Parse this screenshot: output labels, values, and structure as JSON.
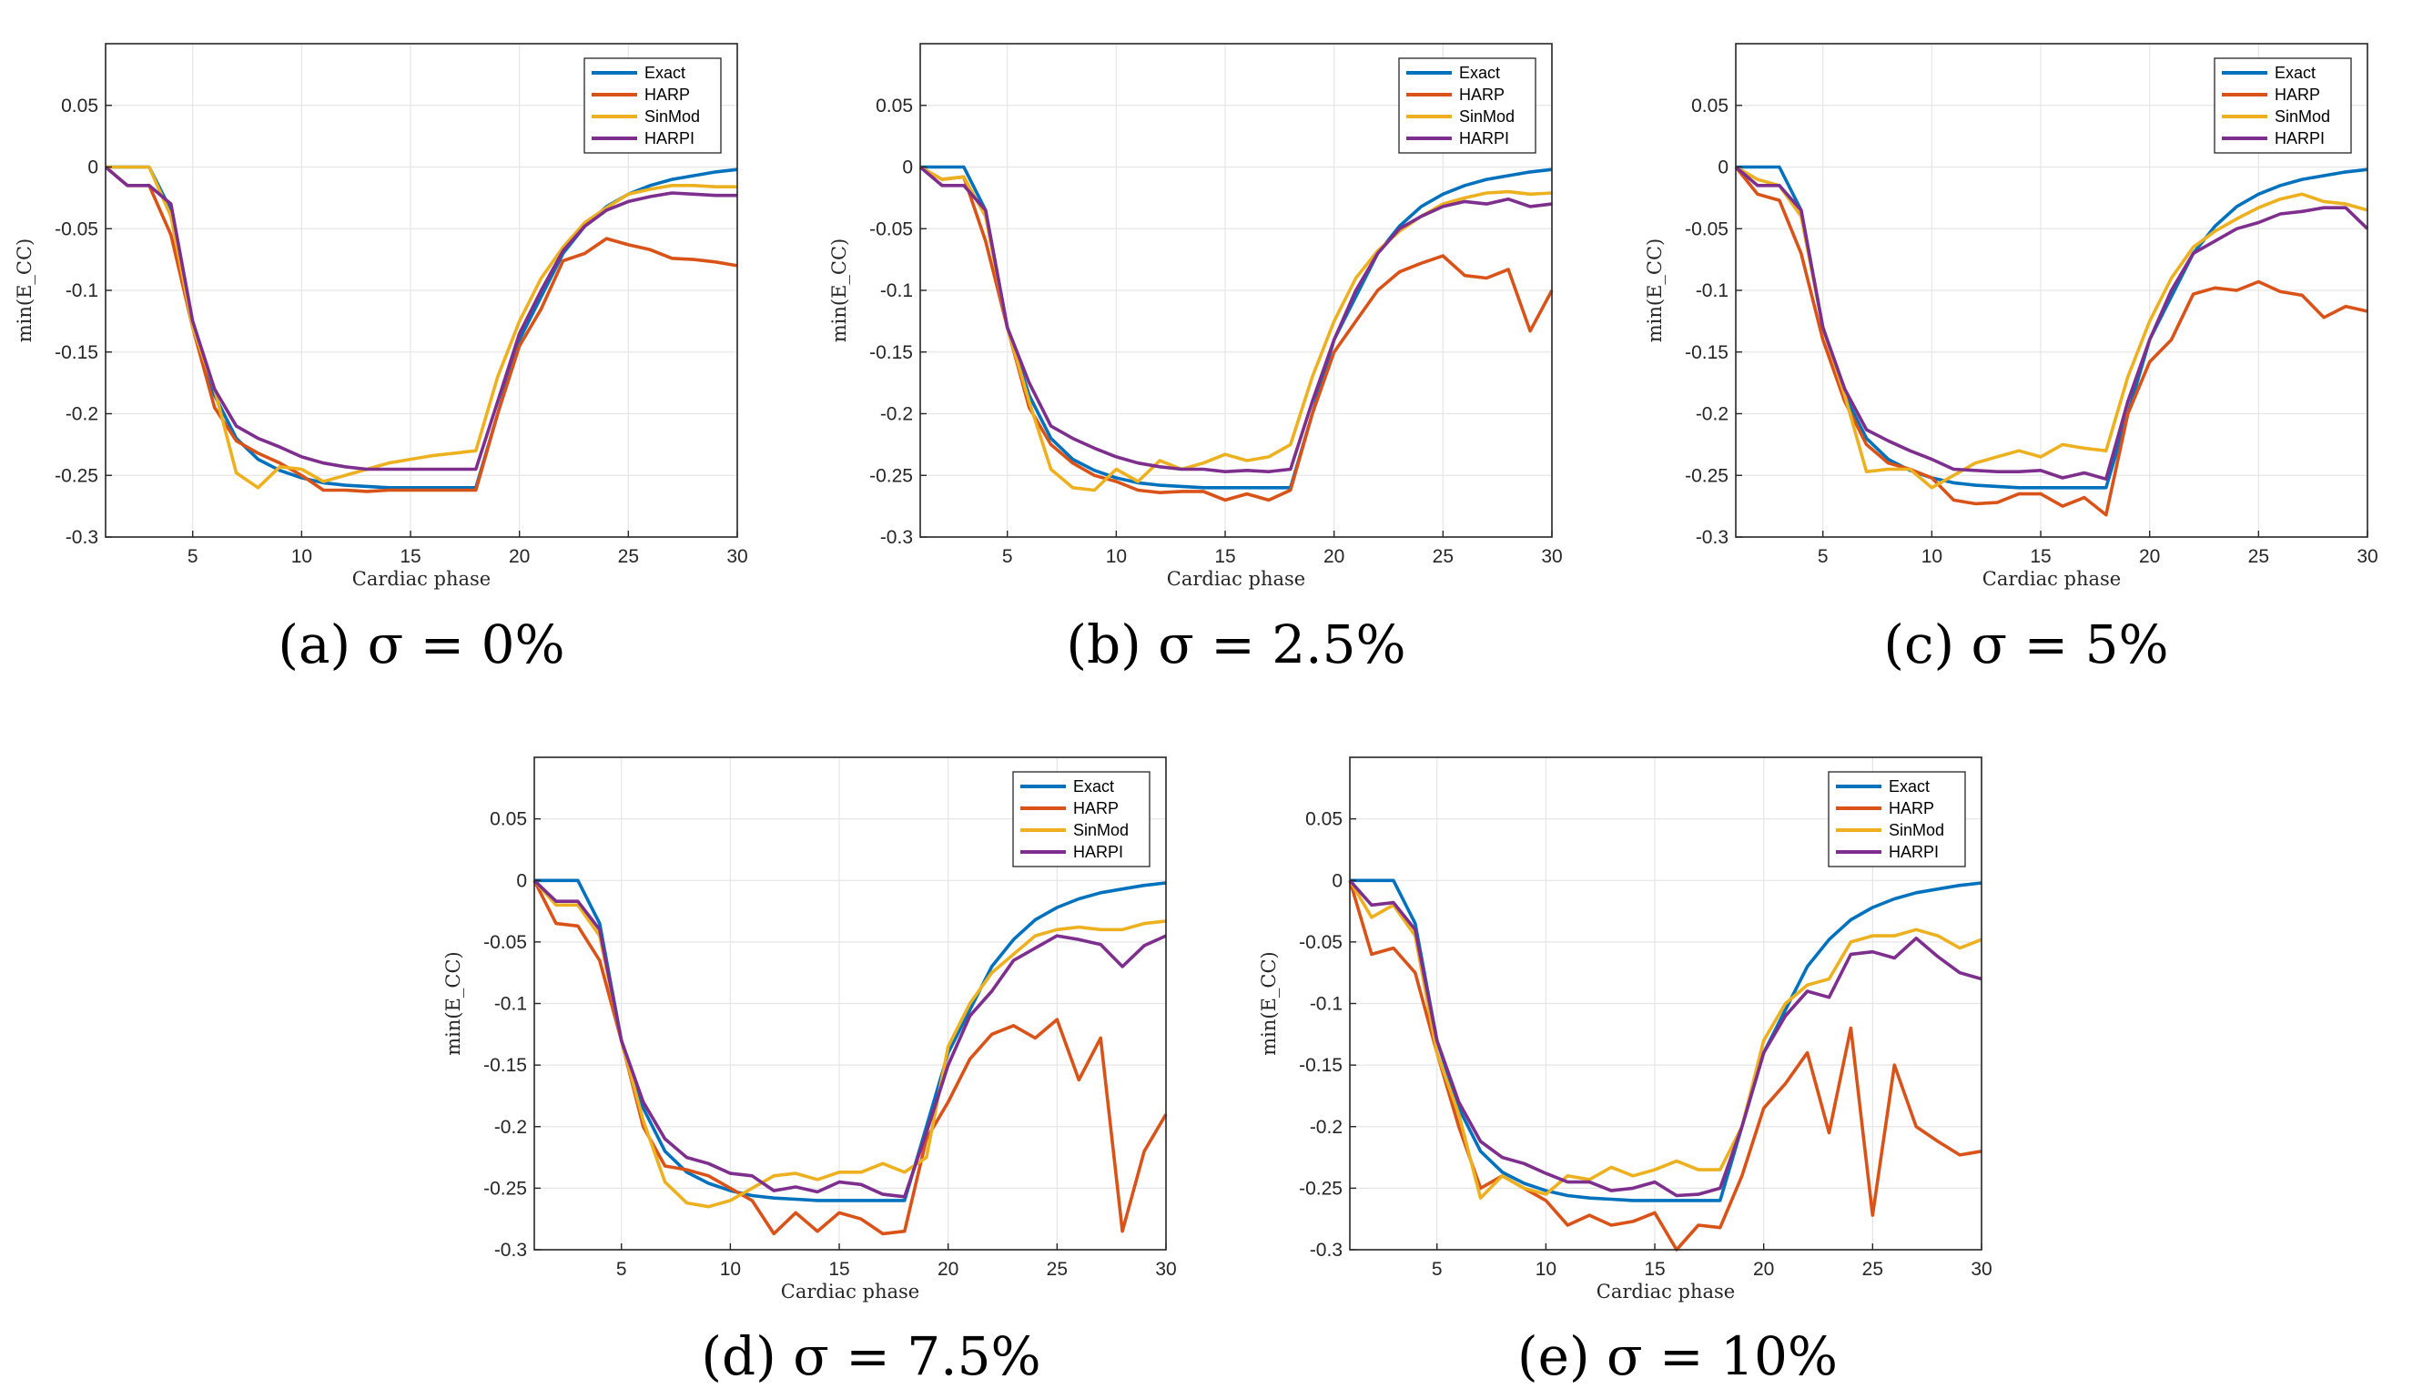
{
  "chart_data": [
    {
      "type": "line",
      "caption": "(a) σ = 0%",
      "xlabel": "Cardiac phase",
      "ylabel": "min(E_CC)",
      "xlim": [
        1,
        30
      ],
      "ylim": [
        -0.3,
        0.1
      ],
      "xticks": [
        5,
        10,
        15,
        20,
        25,
        30
      ],
      "yticks": [
        -0.3,
        -0.25,
        -0.2,
        -0.15,
        -0.1,
        -0.05,
        0,
        0.05
      ],
      "grid": true,
      "legend": "top-right",
      "x": [
        1,
        2,
        3,
        4,
        5,
        6,
        7,
        8,
        9,
        10,
        11,
        12,
        13,
        14,
        15,
        16,
        17,
        18,
        19,
        20,
        21,
        22,
        23,
        24,
        25,
        26,
        27,
        28,
        29,
        30
      ],
      "series": [
        {
          "name": "Exact",
          "color": "#0072BD",
          "values": [
            0,
            0,
            0,
            -0.035,
            -0.13,
            -0.185,
            -0.22,
            -0.237,
            -0.246,
            -0.252,
            -0.256,
            -0.258,
            -0.259,
            -0.26,
            -0.26,
            -0.26,
            -0.26,
            -0.26,
            -0.2,
            -0.14,
            -0.105,
            -0.07,
            -0.048,
            -0.032,
            -0.022,
            -0.015,
            -0.01,
            -0.007,
            -0.004,
            -0.002
          ]
        },
        {
          "name": "HARP",
          "color": "#D95319",
          "values": [
            0,
            -0.015,
            -0.015,
            -0.055,
            -0.13,
            -0.195,
            -0.222,
            -0.232,
            -0.24,
            -0.25,
            -0.262,
            -0.262,
            -0.263,
            -0.262,
            -0.262,
            -0.262,
            -0.262,
            -0.262,
            -0.2,
            -0.145,
            -0.115,
            -0.076,
            -0.07,
            -0.058,
            -0.063,
            -0.067,
            -0.074,
            -0.075,
            -0.077,
            -0.08
          ]
        },
        {
          "name": "SinMod",
          "color": "#EDB120",
          "values": [
            0,
            0,
            0,
            -0.04,
            -0.13,
            -0.18,
            -0.248,
            -0.26,
            -0.243,
            -0.245,
            -0.255,
            -0.25,
            -0.245,
            -0.24,
            -0.237,
            -0.234,
            -0.232,
            -0.23,
            -0.17,
            -0.125,
            -0.09,
            -0.065,
            -0.045,
            -0.033,
            -0.022,
            -0.018,
            -0.015,
            -0.015,
            -0.016,
            -0.016
          ]
        },
        {
          "name": "HARPI",
          "color": "#7E2F8E",
          "values": [
            0,
            -0.015,
            -0.015,
            -0.03,
            -0.125,
            -0.18,
            -0.21,
            -0.22,
            -0.227,
            -0.235,
            -0.24,
            -0.243,
            -0.245,
            -0.245,
            -0.245,
            -0.245,
            -0.245,
            -0.245,
            -0.19,
            -0.135,
            -0.1,
            -0.068,
            -0.048,
            -0.035,
            -0.028,
            -0.024,
            -0.021,
            -0.022,
            -0.023,
            -0.023
          ]
        }
      ]
    },
    {
      "type": "line",
      "caption": "(b) σ = 2.5%",
      "xlabel": "Cardiac phase",
      "ylabel": "min(E_CC)",
      "xlim": [
        1,
        30
      ],
      "ylim": [
        -0.3,
        0.1
      ],
      "xticks": [
        5,
        10,
        15,
        20,
        25,
        30
      ],
      "yticks": [
        -0.3,
        -0.25,
        -0.2,
        -0.15,
        -0.1,
        -0.05,
        0,
        0.05
      ],
      "grid": true,
      "legend": "top-right",
      "x": [
        1,
        2,
        3,
        4,
        5,
        6,
        7,
        8,
        9,
        10,
        11,
        12,
        13,
        14,
        15,
        16,
        17,
        18,
        19,
        20,
        21,
        22,
        23,
        24,
        25,
        26,
        27,
        28,
        29,
        30
      ],
      "series": [
        {
          "name": "Exact",
          "color": "#0072BD",
          "values": [
            0,
            0,
            0,
            -0.035,
            -0.13,
            -0.185,
            -0.22,
            -0.237,
            -0.246,
            -0.252,
            -0.256,
            -0.258,
            -0.259,
            -0.26,
            -0.26,
            -0.26,
            -0.26,
            -0.26,
            -0.2,
            -0.14,
            -0.105,
            -0.07,
            -0.048,
            -0.032,
            -0.022,
            -0.015,
            -0.01,
            -0.007,
            -0.004,
            -0.002
          ]
        },
        {
          "name": "HARP",
          "color": "#D95319",
          "values": [
            0,
            -0.01,
            -0.008,
            -0.06,
            -0.13,
            -0.195,
            -0.225,
            -0.24,
            -0.25,
            -0.255,
            -0.262,
            -0.264,
            -0.263,
            -0.263,
            -0.27,
            -0.265,
            -0.27,
            -0.262,
            -0.2,
            -0.15,
            -0.125,
            -0.1,
            -0.085,
            -0.078,
            -0.072,
            -0.088,
            -0.09,
            -0.083,
            -0.133,
            -0.1
          ]
        },
        {
          "name": "SinMod",
          "color": "#EDB120",
          "values": [
            0,
            -0.01,
            -0.008,
            -0.04,
            -0.13,
            -0.19,
            -0.245,
            -0.26,
            -0.262,
            -0.245,
            -0.255,
            -0.238,
            -0.245,
            -0.24,
            -0.233,
            -0.238,
            -0.235,
            -0.225,
            -0.17,
            -0.125,
            -0.09,
            -0.068,
            -0.052,
            -0.04,
            -0.03,
            -0.025,
            -0.021,
            -0.02,
            -0.022,
            -0.021
          ]
        },
        {
          "name": "HARPI",
          "color": "#7E2F8E",
          "values": [
            0,
            -0.015,
            -0.015,
            -0.035,
            -0.13,
            -0.175,
            -0.21,
            -0.22,
            -0.228,
            -0.235,
            -0.24,
            -0.243,
            -0.245,
            -0.245,
            -0.247,
            -0.246,
            -0.247,
            -0.245,
            -0.19,
            -0.14,
            -0.1,
            -0.07,
            -0.05,
            -0.04,
            -0.032,
            -0.028,
            -0.03,
            -0.026,
            -0.032,
            -0.03
          ]
        }
      ]
    },
    {
      "type": "line",
      "caption": "(c) σ = 5%",
      "xlabel": "Cardiac phase",
      "ylabel": "min(E_CC)",
      "xlim": [
        1,
        30
      ],
      "ylim": [
        -0.3,
        0.1
      ],
      "xticks": [
        5,
        10,
        15,
        20,
        25,
        30
      ],
      "yticks": [
        -0.3,
        -0.25,
        -0.2,
        -0.15,
        -0.1,
        -0.05,
        0,
        0.05
      ],
      "grid": true,
      "legend": "top-right",
      "x": [
        1,
        2,
        3,
        4,
        5,
        6,
        7,
        8,
        9,
        10,
        11,
        12,
        13,
        14,
        15,
        16,
        17,
        18,
        19,
        20,
        21,
        22,
        23,
        24,
        25,
        26,
        27,
        28,
        29,
        30
      ],
      "series": [
        {
          "name": "Exact",
          "color": "#0072BD",
          "values": [
            0,
            0,
            0,
            -0.035,
            -0.13,
            -0.185,
            -0.22,
            -0.237,
            -0.246,
            -0.252,
            -0.256,
            -0.258,
            -0.259,
            -0.26,
            -0.26,
            -0.26,
            -0.26,
            -0.26,
            -0.2,
            -0.14,
            -0.105,
            -0.07,
            -0.048,
            -0.032,
            -0.022,
            -0.015,
            -0.01,
            -0.007,
            -0.004,
            -0.002
          ]
        },
        {
          "name": "HARP",
          "color": "#D95319",
          "values": [
            0,
            -0.022,
            -0.027,
            -0.07,
            -0.14,
            -0.19,
            -0.225,
            -0.24,
            -0.245,
            -0.252,
            -0.27,
            -0.273,
            -0.272,
            -0.265,
            -0.265,
            -0.275,
            -0.268,
            -0.282,
            -0.2,
            -0.158,
            -0.14,
            -0.103,
            -0.098,
            -0.1,
            -0.093,
            -0.101,
            -0.104,
            -0.122,
            -0.113,
            -0.117
          ]
        },
        {
          "name": "SinMod",
          "color": "#EDB120",
          "values": [
            0,
            -0.01,
            -0.015,
            -0.04,
            -0.13,
            -0.185,
            -0.247,
            -0.245,
            -0.245,
            -0.26,
            -0.25,
            -0.24,
            -0.235,
            -0.23,
            -0.235,
            -0.225,
            -0.228,
            -0.23,
            -0.17,
            -0.125,
            -0.09,
            -0.065,
            -0.052,
            -0.042,
            -0.033,
            -0.026,
            -0.022,
            -0.028,
            -0.03,
            -0.035
          ]
        },
        {
          "name": "HARPI",
          "color": "#7E2F8E",
          "values": [
            0,
            -0.015,
            -0.015,
            -0.035,
            -0.13,
            -0.18,
            -0.213,
            -0.222,
            -0.23,
            -0.237,
            -0.245,
            -0.246,
            -0.247,
            -0.247,
            -0.246,
            -0.252,
            -0.248,
            -0.253,
            -0.19,
            -0.14,
            -0.1,
            -0.07,
            -0.06,
            -0.05,
            -0.045,
            -0.038,
            -0.036,
            -0.033,
            -0.033,
            -0.05
          ]
        }
      ]
    },
    {
      "type": "line",
      "caption": "(d) σ = 7.5%",
      "xlabel": "Cardiac phase",
      "ylabel": "min(E_CC)",
      "xlim": [
        1,
        30
      ],
      "ylim": [
        -0.3,
        0.1
      ],
      "xticks": [
        5,
        10,
        15,
        20,
        25,
        30
      ],
      "yticks": [
        -0.3,
        -0.25,
        -0.2,
        -0.15,
        -0.1,
        -0.05,
        0,
        0.05
      ],
      "grid": true,
      "legend": "top-right",
      "x": [
        1,
        2,
        3,
        4,
        5,
        6,
        7,
        8,
        9,
        10,
        11,
        12,
        13,
        14,
        15,
        16,
        17,
        18,
        19,
        20,
        21,
        22,
        23,
        24,
        25,
        26,
        27,
        28,
        29,
        30
      ],
      "series": [
        {
          "name": "Exact",
          "color": "#0072BD",
          "values": [
            0,
            0,
            0,
            -0.035,
            -0.13,
            -0.185,
            -0.22,
            -0.237,
            -0.246,
            -0.252,
            -0.256,
            -0.258,
            -0.259,
            -0.26,
            -0.26,
            -0.26,
            -0.26,
            -0.26,
            -0.2,
            -0.14,
            -0.105,
            -0.07,
            -0.048,
            -0.032,
            -0.022,
            -0.015,
            -0.01,
            -0.007,
            -0.004,
            -0.002
          ]
        },
        {
          "name": "HARP",
          "color": "#D95319",
          "values": [
            0,
            -0.035,
            -0.037,
            -0.065,
            -0.13,
            -0.2,
            -0.232,
            -0.235,
            -0.24,
            -0.25,
            -0.26,
            -0.287,
            -0.27,
            -0.285,
            -0.27,
            -0.275,
            -0.287,
            -0.285,
            -0.21,
            -0.18,
            -0.145,
            -0.125,
            -0.118,
            -0.128,
            -0.113,
            -0.162,
            -0.128,
            -0.285,
            -0.22,
            -0.19
          ]
        },
        {
          "name": "SinMod",
          "color": "#EDB120",
          "values": [
            0,
            -0.02,
            -0.02,
            -0.045,
            -0.13,
            -0.195,
            -0.245,
            -0.262,
            -0.265,
            -0.26,
            -0.25,
            -0.24,
            -0.238,
            -0.243,
            -0.237,
            -0.237,
            -0.23,
            -0.237,
            -0.225,
            -0.135,
            -0.1,
            -0.075,
            -0.06,
            -0.045,
            -0.04,
            -0.038,
            -0.04,
            -0.04,
            -0.035,
            -0.033
          ]
        },
        {
          "name": "HARPI",
          "color": "#7E2F8E",
          "values": [
            0,
            -0.017,
            -0.017,
            -0.04,
            -0.13,
            -0.18,
            -0.21,
            -0.225,
            -0.23,
            -0.238,
            -0.24,
            -0.252,
            -0.249,
            -0.253,
            -0.245,
            -0.247,
            -0.255,
            -0.257,
            -0.205,
            -0.15,
            -0.11,
            -0.09,
            -0.065,
            -0.055,
            -0.045,
            -0.048,
            -0.052,
            -0.07,
            -0.053,
            -0.045
          ]
        }
      ]
    },
    {
      "type": "line",
      "caption": "(e) σ = 10%",
      "xlabel": "Cardiac phase",
      "ylabel": "min(E_CC)",
      "xlim": [
        1,
        30
      ],
      "ylim": [
        -0.3,
        0.1
      ],
      "xticks": [
        5,
        10,
        15,
        20,
        25,
        30
      ],
      "yticks": [
        -0.3,
        -0.25,
        -0.2,
        -0.15,
        -0.1,
        -0.05,
        0,
        0.05
      ],
      "grid": true,
      "legend": "top-right",
      "x": [
        1,
        2,
        3,
        4,
        5,
        6,
        7,
        8,
        9,
        10,
        11,
        12,
        13,
        14,
        15,
        16,
        17,
        18,
        19,
        20,
        21,
        22,
        23,
        24,
        25,
        26,
        27,
        28,
        29,
        30
      ],
      "series": [
        {
          "name": "Exact",
          "color": "#0072BD",
          "values": [
            0,
            0,
            0,
            -0.035,
            -0.13,
            -0.185,
            -0.22,
            -0.237,
            -0.246,
            -0.252,
            -0.256,
            -0.258,
            -0.259,
            -0.26,
            -0.26,
            -0.26,
            -0.26,
            -0.26,
            -0.2,
            -0.14,
            -0.105,
            -0.07,
            -0.048,
            -0.032,
            -0.022,
            -0.015,
            -0.01,
            -0.007,
            -0.004,
            -0.002
          ]
        },
        {
          "name": "HARP",
          "color": "#D95319",
          "values": [
            0,
            -0.06,
            -0.055,
            -0.075,
            -0.14,
            -0.2,
            -0.25,
            -0.24,
            -0.25,
            -0.26,
            -0.28,
            -0.272,
            -0.28,
            -0.277,
            -0.27,
            -0.3,
            -0.28,
            -0.282,
            -0.24,
            -0.185,
            -0.165,
            -0.14,
            -0.205,
            -0.12,
            -0.272,
            -0.15,
            -0.2,
            -0.212,
            -0.223,
            -0.22
          ]
        },
        {
          "name": "SinMod",
          "color": "#EDB120",
          "values": [
            0,
            -0.03,
            -0.02,
            -0.045,
            -0.14,
            -0.19,
            -0.258,
            -0.24,
            -0.25,
            -0.255,
            -0.24,
            -0.243,
            -0.233,
            -0.24,
            -0.235,
            -0.228,
            -0.235,
            -0.235,
            -0.2,
            -0.13,
            -0.1,
            -0.085,
            -0.08,
            -0.05,
            -0.045,
            -0.045,
            -0.04,
            -0.045,
            -0.055,
            -0.048
          ]
        },
        {
          "name": "HARPI",
          "color": "#7E2F8E",
          "values": [
            0,
            -0.02,
            -0.018,
            -0.04,
            -0.13,
            -0.18,
            -0.212,
            -0.225,
            -0.23,
            -0.238,
            -0.245,
            -0.245,
            -0.252,
            -0.25,
            -0.245,
            -0.256,
            -0.255,
            -0.25,
            -0.2,
            -0.14,
            -0.11,
            -0.09,
            -0.095,
            -0.06,
            -0.058,
            -0.063,
            -0.047,
            -0.062,
            -0.075,
            -0.08
          ]
        }
      ]
    }
  ]
}
